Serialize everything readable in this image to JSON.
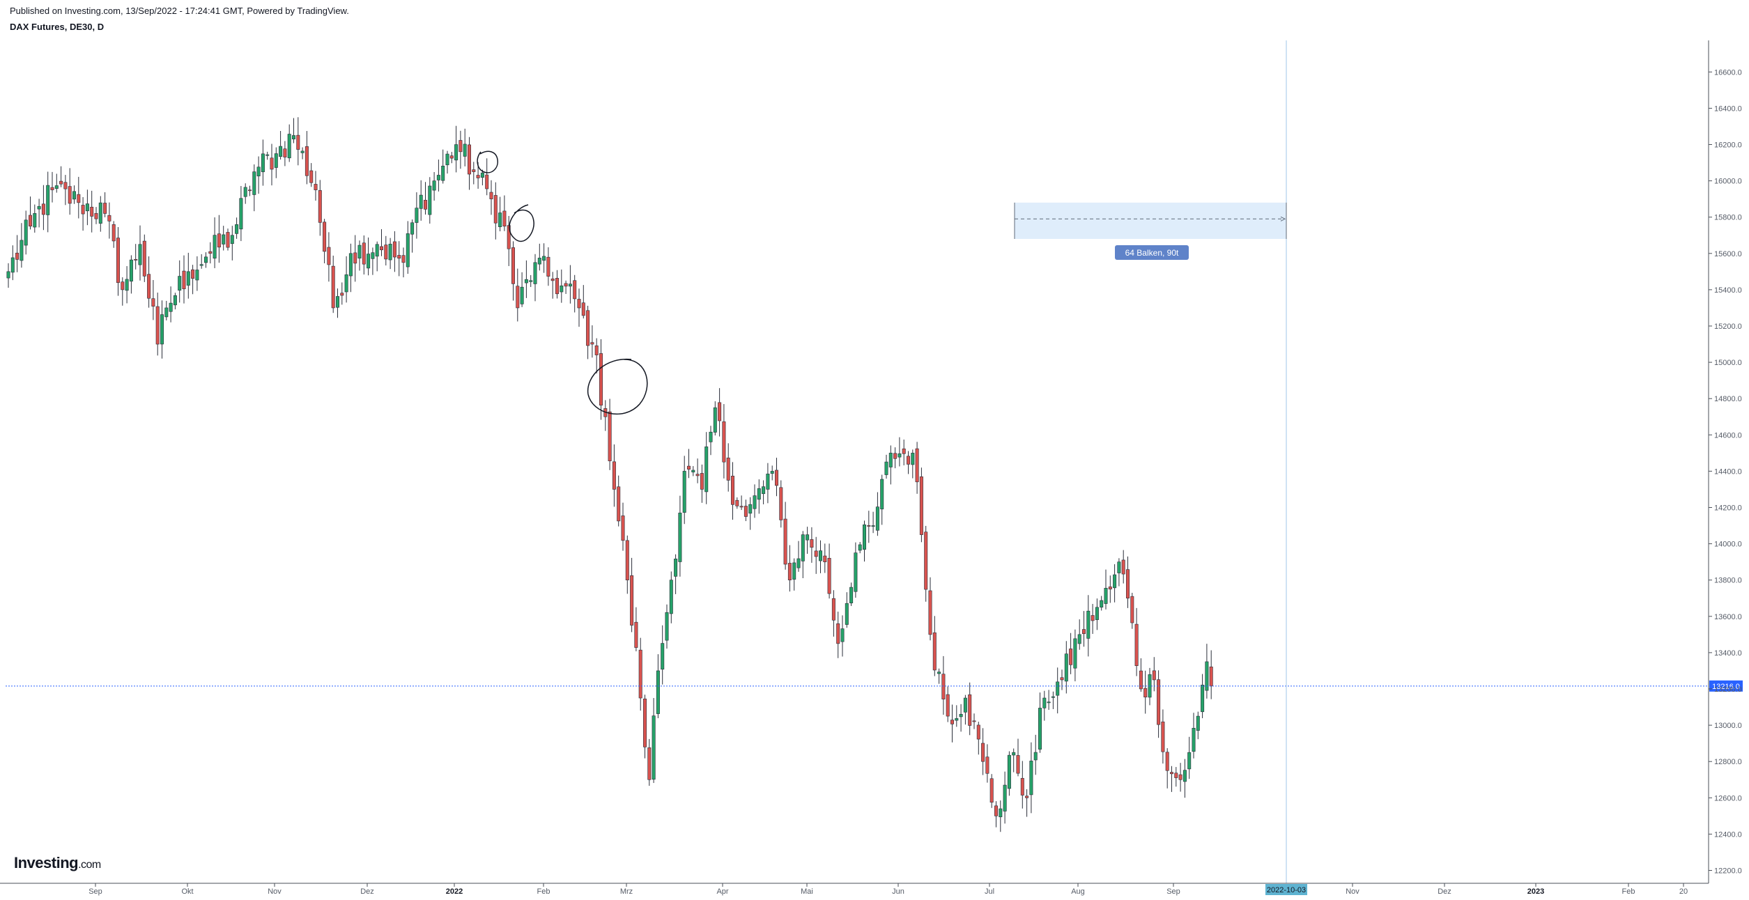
{
  "header": {
    "published": "Published on Investing.com, 13/Sep/2022 - 17:24:41 GMT, Powered by TradingView.",
    "symbol": "DAX Futures, DE30, D"
  },
  "logo": {
    "main": "Investing",
    "suffix": ".com"
  },
  "colors": {
    "up": "#26a269",
    "down": "#d9534f",
    "price_line": "#2962ff",
    "projection_line": "#9fc4e8",
    "range_fill": "#dcebfb"
  },
  "chart_data": {
    "type": "candlestick",
    "ylim": [
      12100,
      16800
    ],
    "yticks": [
      12200,
      12400,
      12600,
      12800,
      13000,
      13200,
      13400,
      13600,
      13800,
      14000,
      14200,
      14400,
      14600,
      14800,
      15000,
      15200,
      15400,
      15600,
      15800,
      16000,
      16200,
      16400,
      16600
    ],
    "ytick_labels": [
      "12200.0",
      "12400.0",
      "12600.0",
      "12800.0",
      "13000.0",
      "13200.0",
      "13400.0",
      "13600.0",
      "13800.0",
      "14000.0",
      "14200.0",
      "14400.0",
      "14600.0",
      "14800.0",
      "15000.0",
      "15200.0",
      "15400.0",
      "15600.0",
      "15800.0",
      "16000.0",
      "16200.0",
      "16400.0",
      "16600.0"
    ],
    "xticks": [
      {
        "label": "Sep",
        "bold": false
      },
      {
        "label": "Okt",
        "bold": false
      },
      {
        "label": "Nov",
        "bold": false
      },
      {
        "label": "Dez",
        "bold": false
      },
      {
        "label": "2022",
        "bold": true
      },
      {
        "label": "Feb",
        "bold": false
      },
      {
        "label": "Mrz",
        "bold": false
      },
      {
        "label": "Apr",
        "bold": false
      },
      {
        "label": "Mai",
        "bold": false
      },
      {
        "label": "Jun",
        "bold": false
      },
      {
        "label": "Jul",
        "bold": false
      },
      {
        "label": "Aug",
        "bold": false
      },
      {
        "label": "Sep",
        "bold": false
      },
      {
        "label": "Nov",
        "bold": false
      },
      {
        "label": "Dez",
        "bold": false
      },
      {
        "label": "2023",
        "bold": true
      },
      {
        "label": "Feb",
        "bold": false
      },
      {
        "label": "20",
        "bold": false
      }
    ],
    "current_price": 13216.0,
    "current_price_label": "13216.0",
    "projection_date_label": "2022-10-03",
    "range_box": {
      "label": "64 Balken, 90t",
      "top_price": 15880,
      "bottom_price": 15680,
      "mid_price": 15790
    },
    "anchors": [
      {
        "i": 0,
        "p": 15500
      },
      {
        "i": 5,
        "p": 15750
      },
      {
        "i": 10,
        "p": 15950
      },
      {
        "i": 16,
        "p": 15880
      },
      {
        "i": 22,
        "p": 15820
      },
      {
        "i": 26,
        "p": 15400
      },
      {
        "i": 30,
        "p": 15650
      },
      {
        "i": 34,
        "p": 15100
      },
      {
        "i": 36,
        "p": 15300
      },
      {
        "i": 41,
        "p": 15500
      },
      {
        "i": 46,
        "p": 15600
      },
      {
        "i": 51,
        "p": 15700
      },
      {
        "i": 56,
        "p": 16050
      },
      {
        "i": 61,
        "p": 16150
      },
      {
        "i": 65,
        "p": 16250
      },
      {
        "i": 70,
        "p": 15950
      },
      {
        "i": 74,
        "p": 15300
      },
      {
        "i": 78,
        "p": 15600
      },
      {
        "i": 84,
        "p": 15650
      },
      {
        "i": 90,
        "p": 15550
      },
      {
        "i": 93,
        "p": 15850
      },
      {
        "i": 97,
        "p": 16000
      },
      {
        "i": 102,
        "p": 16200
      },
      {
        "i": 106,
        "p": 16050
      },
      {
        "i": 110,
        "p": 15900
      },
      {
        "i": 113,
        "p": 15750
      },
      {
        "i": 116,
        "p": 15300
      },
      {
        "i": 120,
        "p": 15550
      },
      {
        "i": 124,
        "p": 15450
      },
      {
        "i": 129,
        "p": 15350
      },
      {
        "i": 133,
        "p": 15100
      },
      {
        "i": 136,
        "p": 14700
      },
      {
        "i": 138,
        "p": 14300
      },
      {
        "i": 141,
        "p": 13800
      },
      {
        "i": 144,
        "p": 13150
      },
      {
        "i": 146,
        "p": 12700
      },
      {
        "i": 148,
        "p": 13300
      },
      {
        "i": 151,
        "p": 13800
      },
      {
        "i": 154,
        "p": 14400
      },
      {
        "i": 158,
        "p": 14300
      },
      {
        "i": 161,
        "p": 14750
      },
      {
        "i": 164,
        "p": 14350
      },
      {
        "i": 168,
        "p": 14150
      },
      {
        "i": 174,
        "p": 14400
      },
      {
        "i": 178,
        "p": 13800
      },
      {
        "i": 181,
        "p": 14050
      },
      {
        "i": 186,
        "p": 13900
      },
      {
        "i": 189,
        "p": 13450
      },
      {
        "i": 193,
        "p": 13950
      },
      {
        "i": 197,
        "p": 14100
      },
      {
        "i": 201,
        "p": 14500
      },
      {
        "i": 206,
        "p": 14500
      },
      {
        "i": 208,
        "p": 14050
      },
      {
        "i": 210,
        "p": 13500
      },
      {
        "i": 214,
        "p": 13050
      },
      {
        "i": 218,
        "p": 13150
      },
      {
        "i": 222,
        "p": 12800
      },
      {
        "i": 225,
        "p": 12500
      },
      {
        "i": 229,
        "p": 12850
      },
      {
        "i": 232,
        "p": 12600
      },
      {
        "i": 236,
        "p": 13150
      },
      {
        "i": 240,
        "p": 13250
      },
      {
        "i": 244,
        "p": 13500
      },
      {
        "i": 248,
        "p": 13650
      },
      {
        "i": 251,
        "p": 13750
      },
      {
        "i": 253,
        "p": 13900
      },
      {
        "i": 255,
        "p": 13700
      },
      {
        "i": 258,
        "p": 13200
      },
      {
        "i": 261,
        "p": 13250
      },
      {
        "i": 264,
        "p": 12750
      },
      {
        "i": 267,
        "p": 12700
      },
      {
        "i": 269,
        "p": 12850
      },
      {
        "i": 271,
        "p": 13050
      },
      {
        "i": 273,
        "p": 13350
      },
      {
        "i": 274,
        "p": 13216
      }
    ]
  }
}
